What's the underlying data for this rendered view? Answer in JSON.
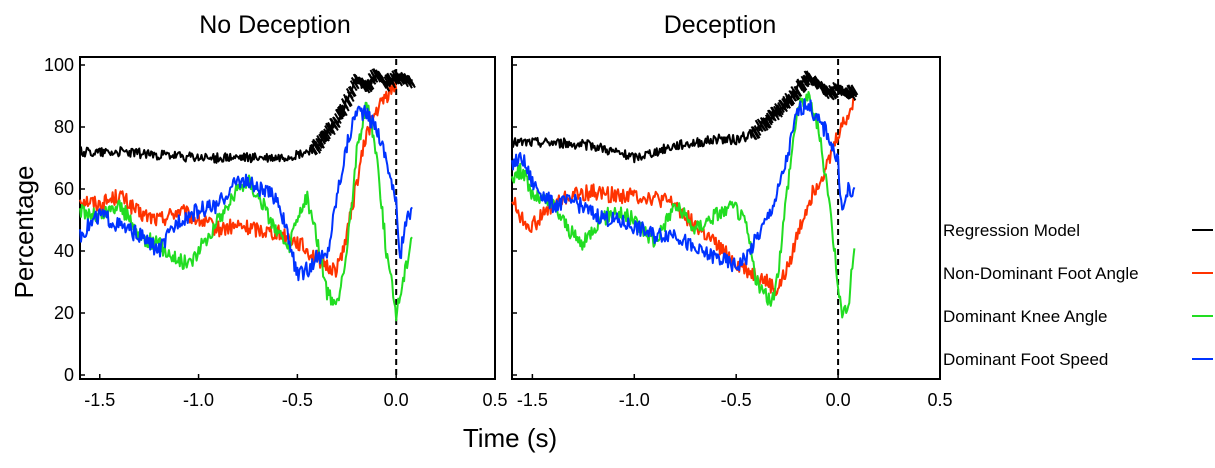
{
  "chart_data": {
    "type": "line",
    "ylabel": "Percentage",
    "xlabel": "Time (s)",
    "xlim": [
      -1.6,
      0.5
    ],
    "ylim": [
      0,
      100
    ],
    "xticks": [
      "-1.5",
      "-1.0",
      "-0.5",
      "0.0",
      "0.5"
    ],
    "yticks": [
      "0",
      "20",
      "40",
      "60",
      "80",
      "100"
    ],
    "vline_x": 0.0,
    "grid": false,
    "legend_position": "right",
    "series_meta": [
      {
        "name": "Regression Model",
        "color": "#000000"
      },
      {
        "name": "Non-Dominant Foot Angle",
        "color": "#ff3300"
      },
      {
        "name": "Dominant Knee Angle",
        "color": "#22dd22"
      },
      {
        "name": "Dominant Foot Speed",
        "color": "#0033ff"
      }
    ],
    "panels": [
      {
        "title": "No Deception",
        "x_end": 0.08,
        "series": [
          {
            "name": "Regression Model",
            "x": [
              -1.6,
              -1.4,
              -1.2,
              -1.0,
              -0.8,
              -0.6,
              -0.5,
              -0.45,
              -0.4,
              -0.35,
              -0.3,
              -0.25,
              -0.2,
              -0.15,
              -0.1,
              -0.05,
              0.0,
              0.05,
              0.08
            ],
            "values": [
              72,
              72,
              71,
              70,
              70,
              70,
              71,
              72,
              74,
              78,
              82,
              88,
              95,
              93,
              97,
              94,
              96,
              95,
              95
            ]
          },
          {
            "name": "Non-Dominant Foot Angle",
            "x": [
              -1.6,
              -1.5,
              -1.4,
              -1.3,
              -1.2,
              -1.1,
              -1.0,
              -0.9,
              -0.8,
              -0.7,
              -0.6,
              -0.5,
              -0.45,
              -0.4,
              -0.35,
              -0.3,
              -0.25,
              -0.2,
              -0.15,
              -0.1,
              -0.05,
              0.0
            ],
            "values": [
              57,
              55,
              58,
              52,
              50,
              53,
              50,
              47,
              48,
              47,
              46,
              43,
              40,
              38,
              35,
              34,
              45,
              62,
              78,
              85,
              90,
              94
            ]
          },
          {
            "name": "Dominant Knee Angle",
            "x": [
              -1.6,
              -1.5,
              -1.4,
              -1.3,
              -1.2,
              -1.1,
              -1.05,
              -1.0,
              -0.9,
              -0.8,
              -0.75,
              -0.7,
              -0.6,
              -0.55,
              -0.5,
              -0.45,
              -0.4,
              -0.35,
              -0.3,
              -0.25,
              -0.2,
              -0.15,
              -0.1,
              -0.05,
              0.0,
              0.05,
              0.08
            ],
            "values": [
              53,
              51,
              55,
              45,
              42,
              37,
              36,
              40,
              50,
              60,
              63,
              58,
              46,
              40,
              50,
              57,
              44,
              26,
              22,
              40,
              72,
              88,
              72,
              40,
              20,
              35,
              46
            ]
          },
          {
            "name": "Dominant Foot Speed",
            "x": [
              -1.6,
              -1.5,
              -1.4,
              -1.3,
              -1.2,
              -1.1,
              -1.0,
              -0.9,
              -0.8,
              -0.75,
              -0.7,
              -0.6,
              -0.55,
              -0.5,
              -0.45,
              -0.4,
              -0.35,
              -0.3,
              -0.25,
              -0.2,
              -0.15,
              -0.1,
              -0.05,
              0.0,
              0.02,
              0.05,
              0.08
            ],
            "values": [
              45,
              52,
              48,
              45,
              40,
              50,
              53,
              55,
              63,
              62,
              60,
              57,
              45,
              32,
              34,
              38,
              38,
              58,
              74,
              86,
              84,
              80,
              70,
              55,
              38,
              50,
              52
            ]
          }
        ]
      },
      {
        "title": "Deception",
        "x_end": 0.08,
        "series": [
          {
            "name": "Regression Model",
            "x": [
              -1.6,
              -1.4,
              -1.2,
              -1.0,
              -0.8,
              -0.6,
              -0.5,
              -0.45,
              -0.4,
              -0.35,
              -0.3,
              -0.25,
              -0.2,
              -0.15,
              -0.1,
              -0.05,
              0.0,
              0.05,
              0.08
            ],
            "values": [
              75,
              75,
              74,
              70,
              74,
              76,
              76,
              77,
              79,
              82,
              85,
              88,
              92,
              96,
              94,
              91,
              92,
              91,
              91
            ]
          },
          {
            "name": "Non-Dominant Foot Angle",
            "x": [
              -1.6,
              -1.55,
              -1.5,
              -1.4,
              -1.3,
              -1.2,
              -1.1,
              -1.0,
              -0.9,
              -0.8,
              -0.7,
              -0.6,
              -0.5,
              -0.45,
              -0.4,
              -0.35,
              -0.3,
              -0.25,
              -0.2,
              -0.15,
              -0.1,
              -0.05,
              0.0,
              0.05,
              0.08
            ],
            "values": [
              57,
              50,
              48,
              55,
              58,
              59,
              58,
              58,
              57,
              55,
              48,
              42,
              36,
              34,
              32,
              30,
              27,
              34,
              45,
              55,
              62,
              68,
              78,
              84,
              88
            ]
          },
          {
            "name": "Dominant Knee Angle",
            "x": [
              -1.6,
              -1.55,
              -1.5,
              -1.4,
              -1.3,
              -1.25,
              -1.2,
              -1.1,
              -1.0,
              -0.9,
              -0.8,
              -0.7,
              -0.6,
              -0.5,
              -0.45,
              -0.4,
              -0.35,
              -0.32,
              -0.3,
              -0.25,
              -0.2,
              -0.15,
              -0.12,
              -0.1,
              -0.05,
              0.0,
              0.02,
              0.05,
              0.08
            ],
            "values": [
              64,
              66,
              58,
              55,
              45,
              42,
              48,
              53,
              50,
              43,
              55,
              47,
              52,
              54,
              48,
              30,
              25,
              24,
              30,
              60,
              86,
              90,
              85,
              80,
              60,
              30,
              18,
              22,
              42
            ]
          },
          {
            "name": "Dominant Foot Speed",
            "x": [
              -1.6,
              -1.55,
              -1.5,
              -1.4,
              -1.3,
              -1.2,
              -1.1,
              -1.0,
              -0.9,
              -0.8,
              -0.7,
              -0.6,
              -0.5,
              -0.45,
              -0.4,
              -0.35,
              -0.3,
              -0.25,
              -0.2,
              -0.15,
              -0.1,
              -0.05,
              0.0,
              0.02,
              0.05,
              0.08
            ],
            "values": [
              68,
              70,
              62,
              55,
              56,
              52,
              50,
              48,
              45,
              46,
              40,
              38,
              35,
              38,
              44,
              50,
              58,
              70,
              85,
              88,
              82,
              78,
              68,
              52,
              60,
              58
            ]
          }
        ]
      }
    ]
  }
}
